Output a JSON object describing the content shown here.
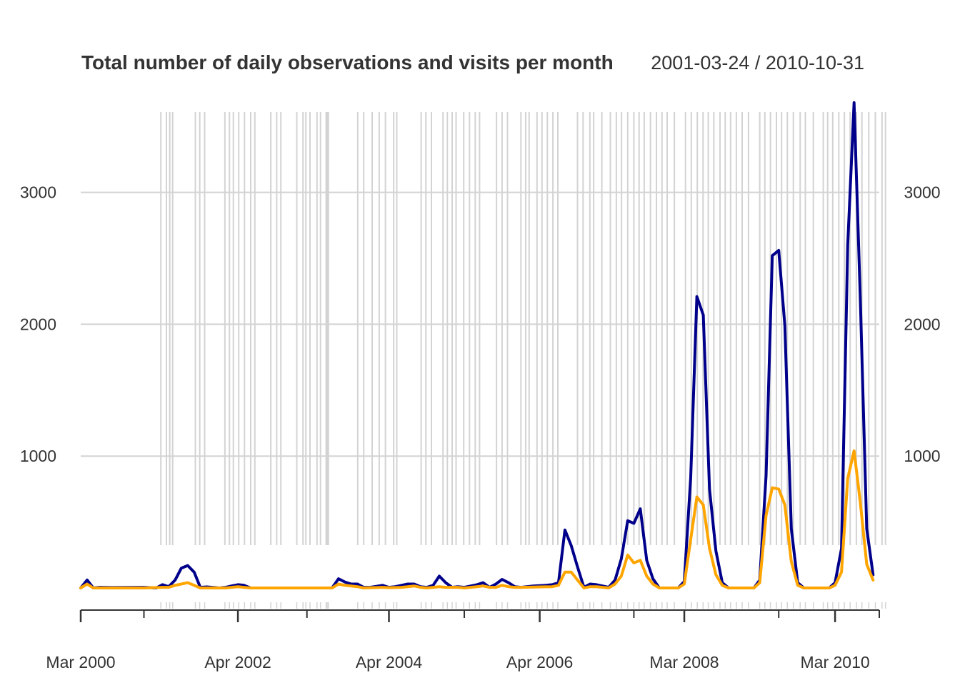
{
  "chart_data": {
    "type": "line",
    "title": "Total number of daily observations and visits per month",
    "date_range": "2001-03-24 / 2010-10-31",
    "xlabel": "",
    "ylabel": "",
    "ylim": [
      0,
      3700
    ],
    "x_ticks": [
      "Mar 2000",
      "Apr 2002",
      "Apr 2004",
      "Apr 2006",
      "Mar 2008",
      "Mar 2010"
    ],
    "y_ticks": [
      1000,
      2000,
      3000
    ],
    "colors": {
      "observations": "#00008B",
      "visits": "#FFA500",
      "grid": "#D3D3D3",
      "axis": "#333333"
    },
    "series": [
      {
        "key": "observations",
        "points": [
          [
            "2000-03-01",
            0
          ],
          [
            "2000-04-01",
            60
          ],
          [
            "2000-05-01",
            0
          ],
          [
            "2000-06-01",
            5
          ],
          [
            "2000-08-01",
            3
          ],
          [
            "2001-01-01",
            5
          ],
          [
            "2001-03-01",
            0
          ],
          [
            "2001-04-01",
            25
          ],
          [
            "2001-05-01",
            10
          ],
          [
            "2001-06-01",
            60
          ],
          [
            "2001-07-01",
            150
          ],
          [
            "2001-08-01",
            170
          ],
          [
            "2001-09-01",
            120
          ],
          [
            "2001-10-01",
            5
          ],
          [
            "2001-11-01",
            8
          ],
          [
            "2002-01-01",
            0
          ],
          [
            "2002-02-01",
            5
          ],
          [
            "2002-03-01",
            15
          ],
          [
            "2002-04-01",
            25
          ],
          [
            "2002-05-01",
            20
          ],
          [
            "2002-06-01",
            0
          ],
          [
            "2003-07-01",
            0
          ],
          [
            "2003-08-01",
            70
          ],
          [
            "2003-09-01",
            45
          ],
          [
            "2003-10-01",
            30
          ],
          [
            "2003-11-01",
            30
          ],
          [
            "2003-12-01",
            5
          ],
          [
            "2004-01-01",
            5
          ],
          [
            "2004-03-01",
            20
          ],
          [
            "2004-04-01",
            5
          ],
          [
            "2004-05-01",
            10
          ],
          [
            "2004-06-01",
            20
          ],
          [
            "2004-07-01",
            30
          ],
          [
            "2004-08-01",
            30
          ],
          [
            "2004-09-01",
            10
          ],
          [
            "2004-10-01",
            5
          ],
          [
            "2004-11-01",
            20
          ],
          [
            "2004-12-01",
            90
          ],
          [
            "2005-01-01",
            40
          ],
          [
            "2005-02-01",
            5
          ],
          [
            "2005-03-01",
            10
          ],
          [
            "2005-04-01",
            5
          ],
          [
            "2005-06-01",
            25
          ],
          [
            "2005-07-01",
            40
          ],
          [
            "2005-08-01",
            5
          ],
          [
            "2005-09-01",
            30
          ],
          [
            "2005-10-01",
            65
          ],
          [
            "2005-11-01",
            40
          ],
          [
            "2005-12-01",
            10
          ],
          [
            "2006-01-01",
            5
          ],
          [
            "2006-03-01",
            15
          ],
          [
            "2006-05-01",
            20
          ],
          [
            "2006-06-01",
            25
          ],
          [
            "2006-07-01",
            40
          ],
          [
            "2006-08-01",
            440
          ],
          [
            "2006-09-01",
            320
          ],
          [
            "2006-10-01",
            160
          ],
          [
            "2006-11-01",
            5
          ],
          [
            "2006-12-01",
            30
          ],
          [
            "2007-01-01",
            25
          ],
          [
            "2007-03-01",
            5
          ],
          [
            "2007-04-01",
            60
          ],
          [
            "2007-05-01",
            220
          ],
          [
            "2007-06-01",
            510
          ],
          [
            "2007-07-01",
            490
          ],
          [
            "2007-08-01",
            600
          ],
          [
            "2007-09-01",
            210
          ],
          [
            "2007-10-01",
            70
          ],
          [
            "2007-11-01",
            0
          ],
          [
            "2008-02-01",
            0
          ],
          [
            "2008-03-01",
            50
          ],
          [
            "2008-04-01",
            840
          ],
          [
            "2008-05-01",
            2210
          ],
          [
            "2008-06-01",
            2070
          ],
          [
            "2008-07-01",
            750
          ],
          [
            "2008-08-01",
            280
          ],
          [
            "2008-09-01",
            40
          ],
          [
            "2008-10-01",
            0
          ],
          [
            "2009-02-01",
            0
          ],
          [
            "2009-03-01",
            60
          ],
          [
            "2009-04-01",
            850
          ],
          [
            "2009-05-01",
            2520
          ],
          [
            "2009-06-01",
            2560
          ],
          [
            "2009-07-01",
            1990
          ],
          [
            "2009-08-01",
            450
          ],
          [
            "2009-09-01",
            40
          ],
          [
            "2009-10-01",
            0
          ],
          [
            "2010-02-01",
            0
          ],
          [
            "2010-03-01",
            40
          ],
          [
            "2010-04-01",
            300
          ],
          [
            "2010-05-01",
            2600
          ],
          [
            "2010-06-01",
            3680
          ],
          [
            "2010-07-01",
            2200
          ],
          [
            "2010-08-01",
            450
          ],
          [
            "2010-09-01",
            100
          ]
        ]
      },
      {
        "key": "visits",
        "points": [
          [
            "2000-03-01",
            0
          ],
          [
            "2000-04-01",
            30
          ],
          [
            "2000-05-01",
            0
          ],
          [
            "2000-08-01",
            0
          ],
          [
            "2001-01-01",
            0
          ],
          [
            "2001-04-01",
            5
          ],
          [
            "2001-05-01",
            5
          ],
          [
            "2001-06-01",
            20
          ],
          [
            "2001-07-01",
            30
          ],
          [
            "2001-08-01",
            40
          ],
          [
            "2001-09-01",
            20
          ],
          [
            "2001-10-01",
            0
          ],
          [
            "2002-02-01",
            0
          ],
          [
            "2002-03-01",
            5
          ],
          [
            "2002-04-01",
            10
          ],
          [
            "2002-05-01",
            5
          ],
          [
            "2002-06-01",
            0
          ],
          [
            "2003-07-01",
            0
          ],
          [
            "2003-08-01",
            30
          ],
          [
            "2003-09-01",
            20
          ],
          [
            "2003-10-01",
            15
          ],
          [
            "2003-11-01",
            10
          ],
          [
            "2003-12-01",
            0
          ],
          [
            "2004-03-01",
            5
          ],
          [
            "2004-04-01",
            2
          ],
          [
            "2004-06-01",
            5
          ],
          [
            "2004-07-01",
            10
          ],
          [
            "2004-08-01",
            15
          ],
          [
            "2004-09-01",
            5
          ],
          [
            "2004-10-01",
            0
          ],
          [
            "2004-11-01",
            5
          ],
          [
            "2004-12-01",
            10
          ],
          [
            "2005-01-01",
            5
          ],
          [
            "2005-03-01",
            5
          ],
          [
            "2005-04-01",
            0
          ],
          [
            "2005-06-01",
            10
          ],
          [
            "2005-07-01",
            15
          ],
          [
            "2005-08-01",
            5
          ],
          [
            "2005-09-01",
            5
          ],
          [
            "2005-10-01",
            20
          ],
          [
            "2005-11-01",
            10
          ],
          [
            "2005-12-01",
            5
          ],
          [
            "2006-01-01",
            5
          ],
          [
            "2006-06-01",
            10
          ],
          [
            "2006-07-01",
            20
          ],
          [
            "2006-08-01",
            120
          ],
          [
            "2006-09-01",
            120
          ],
          [
            "2006-10-01",
            60
          ],
          [
            "2006-11-01",
            0
          ],
          [
            "2006-12-01",
            10
          ],
          [
            "2007-01-01",
            10
          ],
          [
            "2007-03-01",
            0
          ],
          [
            "2007-04-01",
            30
          ],
          [
            "2007-05-01",
            90
          ],
          [
            "2007-06-01",
            250
          ],
          [
            "2007-07-01",
            190
          ],
          [
            "2007-08-01",
            210
          ],
          [
            "2007-09-01",
            90
          ],
          [
            "2007-10-01",
            30
          ],
          [
            "2007-11-01",
            0
          ],
          [
            "2008-02-01",
            0
          ],
          [
            "2008-03-01",
            30
          ],
          [
            "2008-04-01",
            370
          ],
          [
            "2008-05-01",
            690
          ],
          [
            "2008-06-01",
            630
          ],
          [
            "2008-07-01",
            300
          ],
          [
            "2008-08-01",
            100
          ],
          [
            "2008-09-01",
            20
          ],
          [
            "2008-10-01",
            0
          ],
          [
            "2009-02-01",
            0
          ],
          [
            "2009-03-01",
            40
          ],
          [
            "2009-04-01",
            550
          ],
          [
            "2009-05-01",
            760
          ],
          [
            "2009-06-01",
            750
          ],
          [
            "2009-07-01",
            630
          ],
          [
            "2009-08-01",
            200
          ],
          [
            "2009-09-01",
            20
          ],
          [
            "2009-10-01",
            0
          ],
          [
            "2010-02-01",
            0
          ],
          [
            "2010-03-01",
            20
          ],
          [
            "2010-04-01",
            120
          ],
          [
            "2010-05-01",
            830
          ],
          [
            "2010-06-01",
            1040
          ],
          [
            "2010-07-01",
            650
          ],
          [
            "2010-08-01",
            180
          ],
          [
            "2010-09-01",
            60
          ]
        ]
      }
    ],
    "event_dates": [
      "2001-03-24",
      "2001-04-20",
      "2001-05-06",
      "2001-05-20",
      "2001-09-07",
      "2001-09-28",
      "2001-10-22",
      "2002-01-28",
      "2002-02-19",
      "2002-03-10",
      "2002-04-05",
      "2002-05-03",
      "2002-06-02",
      "2002-06-22",
      "2002-09-07",
      "2002-10-06",
      "2002-10-26",
      "2003-01-11",
      "2003-02-10",
      "2003-02-24",
      "2003-03-16",
      "2003-04-19",
      "2003-05-06",
      "2003-06-02",
      "2003-06-07",
      "2003-06-13",
      "2003-11-02",
      "2003-12-01",
      "2004-01-11",
      "2004-02-14",
      "2004-03-15",
      "2004-04-24",
      "2004-05-09",
      "2004-09-04",
      "2004-09-27",
      "2004-10-24",
      "2004-12-19",
      "2005-01-09",
      "2005-02-01",
      "2005-02-20",
      "2005-03-29",
      "2005-04-26",
      "2005-05-24",
      "2005-06-14",
      "2005-09-04",
      "2005-10-01",
      "2005-10-27",
      "2005-12-31",
      "2006-01-23",
      "2006-02-09",
      "2006-03-19",
      "2006-04-12",
      "2006-05-08",
      "2006-06-04",
      "2006-06-28",
      "2006-10-01",
      "2006-10-28",
      "2006-11-30",
      "2006-12-18",
      "2007-01-27",
      "2007-03-09",
      "2007-04-07",
      "2007-05-02",
      "2007-06-01",
      "2007-07-01",
      "2007-07-26",
      "2007-08-20",
      "2007-09-19",
      "2007-10-18",
      "2007-11-14",
      "2007-12-09",
      "2008-01-13",
      "2008-03-07",
      "2008-04-04",
      "2008-05-03",
      "2008-05-31",
      "2008-06-25",
      "2008-07-22",
      "2008-08-21",
      "2008-09-15",
      "2008-10-11",
      "2008-11-08",
      "2008-12-06",
      "2009-01-06",
      "2009-03-01",
      "2009-03-26",
      "2009-04-22",
      "2009-05-21",
      "2009-06-15",
      "2009-07-13",
      "2009-08-11",
      "2009-09-13",
      "2009-10-08",
      "2009-11-16",
      "2010-01-03",
      "2010-01-24",
      "2010-02-18",
      "2010-03-19",
      "2010-04-15",
      "2010-05-13",
      "2010-06-12",
      "2010-07-09",
      "2010-08-11",
      "2010-09-12",
      "2010-10-14",
      "2010-10-31"
    ]
  }
}
